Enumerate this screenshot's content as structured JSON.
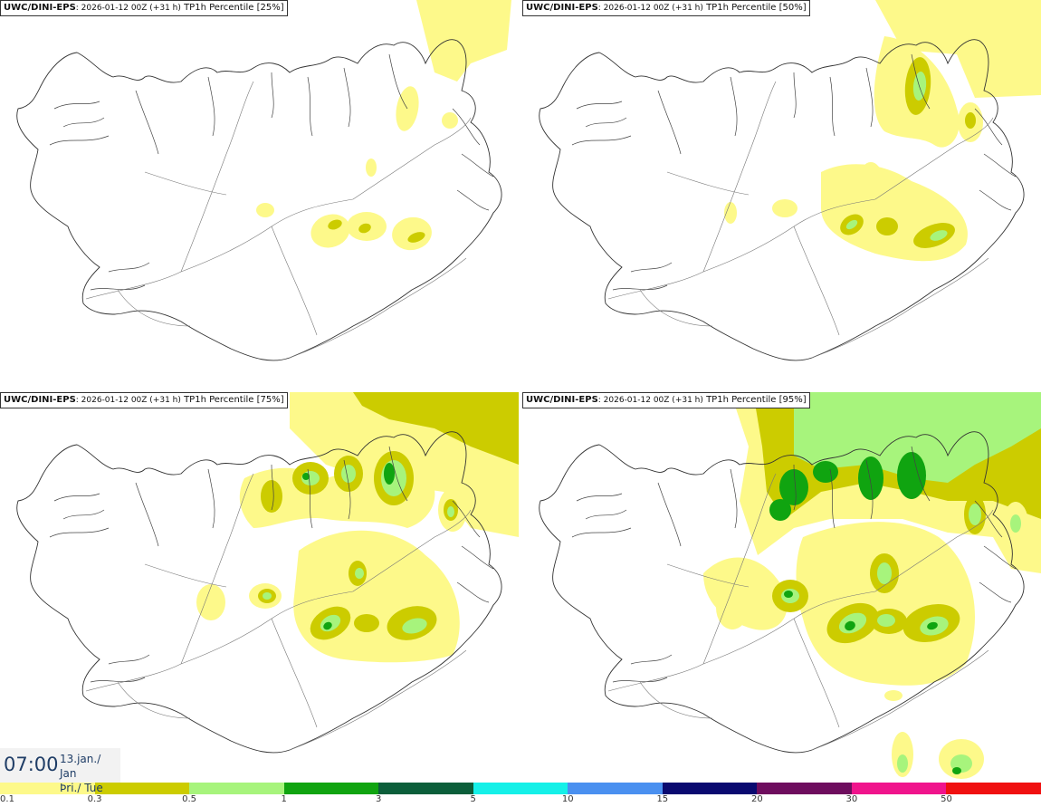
{
  "panels": [
    {
      "brand": "UWC/DINI-EPS",
      "run": ": 2026-01-12 00Z (+31 h)",
      "product": " TP1h Percentile ",
      "percentile": "[25%]"
    },
    {
      "brand": "UWC/DINI-EPS",
      "run": ": 2026-01-12 00Z (+31 h)",
      "product": " TP1h Percentile ",
      "percentile": "[50%]"
    },
    {
      "brand": "UWC/DINI-EPS",
      "run": ": 2026-01-12 00Z (+31 h)",
      "product": " TP1h Percentile ",
      "percentile": "[75%]"
    },
    {
      "brand": "UWC/DINI-EPS",
      "run": ": 2026-01-12 00Z (+31 h)",
      "product": " TP1h Percentile ",
      "percentile": "[95%]"
    }
  ],
  "valid_time": {
    "clock": "07:00",
    "date_line": "13.jan./ Jan",
    "day_line": "Þri./ Tue"
  },
  "legend": {
    "colors": [
      "#fdf98a",
      "#cccc00",
      "#a7f47c",
      "#10a410",
      "#0b5e3a",
      "#15f0e8",
      "#4a90f0",
      "#0a0a70",
      "#6e0d5e",
      "#f0148c",
      "#f01010"
    ],
    "tick_labels": [
      "0.1",
      "0.3",
      "0.5",
      "1",
      "3",
      "5",
      "10",
      "15",
      "20",
      "30",
      "50"
    ]
  }
}
